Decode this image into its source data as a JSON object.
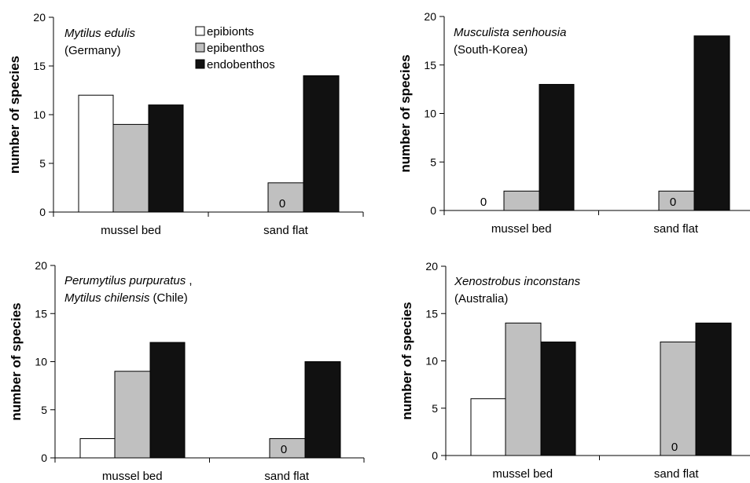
{
  "colors": {
    "epibionts": "#ffffff",
    "epibenthos": "#c0c0c0",
    "endobenthos": "#111111"
  },
  "legend": [
    {
      "name": "epibionts",
      "color_key": "epibionts"
    },
    {
      "name": "epibenthos",
      "color_key": "epibenthos"
    },
    {
      "name": "endobenthos",
      "color_key": "endobenthos"
    }
  ],
  "chart_data": [
    {
      "type": "bar",
      "annotation": [
        {
          "italic": "Mytilus edulis",
          "plain": ""
        },
        {
          "italic": "",
          "plain": "(Germany)"
        }
      ],
      "ylabel": "number of species",
      "ylim": [
        0,
        20
      ],
      "yticks": [
        "0",
        "5",
        "10",
        "15",
        "20"
      ],
      "categories": [
        "mussel bed",
        "sand flat"
      ],
      "series": [
        {
          "name": "epibionts",
          "values": [
            12,
            0
          ]
        },
        {
          "name": "epibenthos",
          "values": [
            9,
            3
          ]
        },
        {
          "name": "endobenthos",
          "values": [
            11,
            14
          ]
        }
      ],
      "zero_labels": [
        "",
        "0"
      ],
      "legend": "top-right"
    },
    {
      "type": "bar",
      "annotation": [
        {
          "italic": "Musculista senhousia",
          "plain": ""
        },
        {
          "italic": "",
          "plain": "(South-Korea)"
        }
      ],
      "ylabel": "number of species",
      "ylim": [
        0,
        20
      ],
      "yticks": [
        "0",
        "5",
        "10",
        "15",
        "20"
      ],
      "categories": [
        "mussel bed",
        "sand flat"
      ],
      "series": [
        {
          "name": "epibionts",
          "values": [
            0,
            0
          ]
        },
        {
          "name": "epibenthos",
          "values": [
            2,
            2
          ]
        },
        {
          "name": "endobenthos",
          "values": [
            13,
            18
          ]
        }
      ],
      "zero_labels": [
        "0",
        "0"
      ]
    },
    {
      "type": "bar",
      "annotation": [
        {
          "italic": "Perumytilus purpuratus",
          "plain": " ,"
        },
        {
          "italic": "Mytilus chilensis",
          "plain": "  (Chile)"
        }
      ],
      "ylabel": "number of species",
      "ylim": [
        0,
        20
      ],
      "yticks": [
        "0",
        "5",
        "10",
        "15",
        "20"
      ],
      "categories": [
        "mussel bed",
        "sand flat"
      ],
      "series": [
        {
          "name": "epibionts",
          "values": [
            2,
            0
          ]
        },
        {
          "name": "epibenthos",
          "values": [
            9,
            2
          ]
        },
        {
          "name": "endobenthos",
          "values": [
            12,
            10
          ]
        }
      ],
      "zero_labels": [
        "",
        "0"
      ]
    },
    {
      "type": "bar",
      "annotation": [
        {
          "italic": "Xenostrobus inconstans",
          "plain": ""
        },
        {
          "italic": "",
          "plain": "(Australia)"
        }
      ],
      "ylabel": "number of species",
      "ylim": [
        0,
        20
      ],
      "yticks": [
        "0",
        "5",
        "10",
        "15",
        "20"
      ],
      "categories": [
        "mussel bed",
        "sand flat"
      ],
      "series": [
        {
          "name": "epibionts",
          "values": [
            6,
            0
          ]
        },
        {
          "name": "epibenthos",
          "values": [
            14,
            12
          ]
        },
        {
          "name": "endobenthos",
          "values": [
            12,
            14
          ]
        }
      ],
      "zero_labels": [
        "",
        "0"
      ]
    }
  ]
}
